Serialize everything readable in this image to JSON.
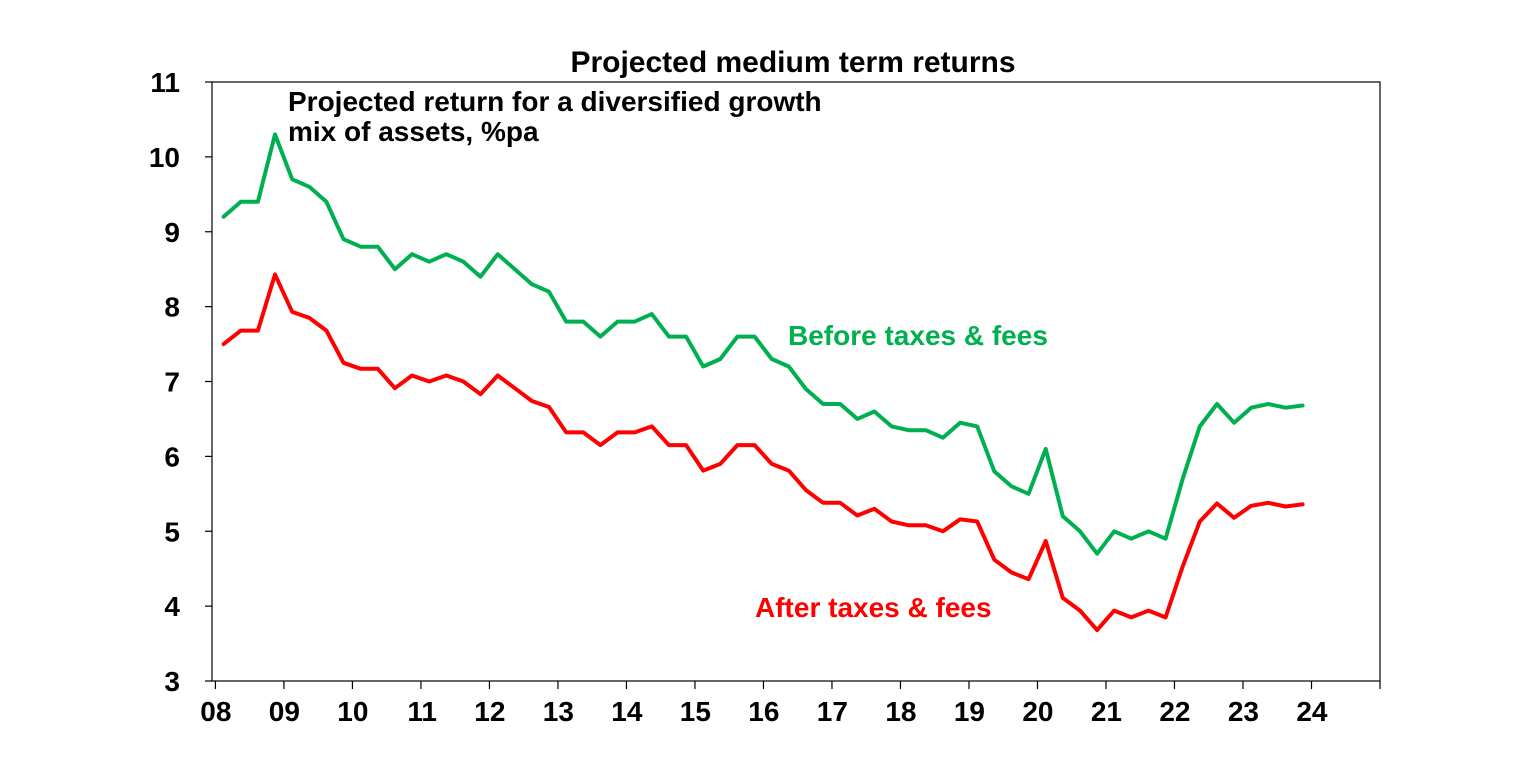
{
  "chart_data": {
    "type": "line",
    "title": "Projected medium term returns",
    "annotation": [
      "Projected return for a diversified growth",
      "mix of assets, %pa"
    ],
    "xlabel": "",
    "ylabel": "",
    "ylim": [
      3,
      11
    ],
    "xlim": [
      2007.95,
      2025.0
    ],
    "y_ticks": [
      3,
      4,
      5,
      6,
      7,
      8,
      9,
      10,
      11
    ],
    "x_tick_labels": [
      "08",
      "09",
      "10",
      "11",
      "12",
      "13",
      "14",
      "15",
      "16",
      "17",
      "18",
      "19",
      "20",
      "21",
      "22",
      "23",
      "24"
    ],
    "x_tick_years": [
      2008,
      2009,
      2010,
      2011,
      2012,
      2013,
      2014,
      2015,
      2016,
      2017,
      2018,
      2019,
      2020,
      2021,
      2022,
      2023,
      2024
    ],
    "series": [
      {
        "name": "Before taxes & fees",
        "color": "#00B050",
        "x": [
          2008.12,
          2008.37,
          2008.62,
          2008.87,
          2009.12,
          2009.37,
          2009.62,
          2009.87,
          2010.12,
          2010.37,
          2010.62,
          2010.87,
          2011.12,
          2011.37,
          2011.62,
          2011.87,
          2012.12,
          2012.37,
          2012.62,
          2012.87,
          2013.12,
          2013.37,
          2013.62,
          2013.87,
          2014.12,
          2014.37,
          2014.62,
          2014.87,
          2015.12,
          2015.37,
          2015.62,
          2015.87,
          2016.12,
          2016.37,
          2016.62,
          2016.87,
          2017.12,
          2017.37,
          2017.62,
          2017.87,
          2018.12,
          2018.37,
          2018.62,
          2018.87,
          2019.12,
          2019.37,
          2019.62,
          2019.87,
          2020.12,
          2020.37,
          2020.62,
          2020.87,
          2021.12,
          2021.37,
          2021.62,
          2021.87,
          2022.12,
          2022.37,
          2022.62,
          2022.87,
          2023.12,
          2023.37,
          2023.62,
          2023.87
        ],
        "values": [
          9.2,
          9.4,
          9.4,
          10.3,
          9.7,
          9.6,
          9.4,
          8.9,
          8.8,
          8.8,
          8.5,
          8.7,
          8.6,
          8.7,
          8.6,
          8.4,
          8.7,
          8.5,
          8.3,
          8.2,
          7.8,
          7.8,
          7.6,
          7.8,
          7.8,
          7.9,
          7.6,
          7.6,
          7.2,
          7.3,
          7.6,
          7.6,
          7.3,
          7.2,
          6.9,
          6.7,
          6.7,
          6.5,
          6.6,
          6.4,
          6.35,
          6.35,
          6.25,
          6.45,
          6.4,
          5.8,
          5.6,
          5.5,
          6.1,
          5.2,
          5.0,
          4.7,
          5.0,
          4.9,
          5.0,
          4.9,
          5.7,
          6.4,
          6.7,
          6.45,
          6.65,
          6.7,
          6.65,
          6.68
        ]
      },
      {
        "name": "After taxes & fees",
        "color": "#FF0000",
        "x": [
          2008.12,
          2008.37,
          2008.62,
          2008.87,
          2009.12,
          2009.37,
          2009.62,
          2009.87,
          2010.12,
          2010.37,
          2010.62,
          2010.87,
          2011.12,
          2011.37,
          2011.62,
          2011.87,
          2012.12,
          2012.37,
          2012.62,
          2012.87,
          2013.12,
          2013.37,
          2013.62,
          2013.87,
          2014.12,
          2014.37,
          2014.62,
          2014.87,
          2015.12,
          2015.37,
          2015.62,
          2015.87,
          2016.12,
          2016.37,
          2016.62,
          2016.87,
          2017.12,
          2017.37,
          2017.62,
          2017.87,
          2018.12,
          2018.37,
          2018.62,
          2018.87,
          2019.12,
          2019.37,
          2019.62,
          2019.87,
          2020.12,
          2020.37,
          2020.62,
          2020.87,
          2021.12,
          2021.37,
          2021.62,
          2021.87,
          2022.12,
          2022.37,
          2022.62,
          2022.87,
          2023.12,
          2023.37,
          2023.62,
          2023.87
        ],
        "values": [
          7.5,
          7.68,
          7.68,
          8.43,
          7.93,
          7.85,
          7.68,
          7.25,
          7.17,
          7.17,
          6.91,
          7.08,
          7.0,
          7.08,
          7.0,
          6.83,
          7.08,
          6.91,
          6.74,
          6.66,
          6.32,
          6.32,
          6.15,
          6.32,
          6.32,
          6.4,
          6.15,
          6.15,
          5.81,
          5.9,
          6.15,
          6.15,
          5.9,
          5.81,
          5.55,
          5.38,
          5.38,
          5.21,
          5.3,
          5.13,
          5.08,
          5.08,
          5.0,
          5.16,
          5.13,
          4.62,
          4.45,
          4.36,
          4.87,
          4.11,
          3.94,
          3.68,
          3.94,
          3.85,
          3.94,
          3.85,
          4.53,
          5.13,
          5.37,
          5.18,
          5.34,
          5.38,
          5.33,
          5.36
        ]
      }
    ]
  }
}
